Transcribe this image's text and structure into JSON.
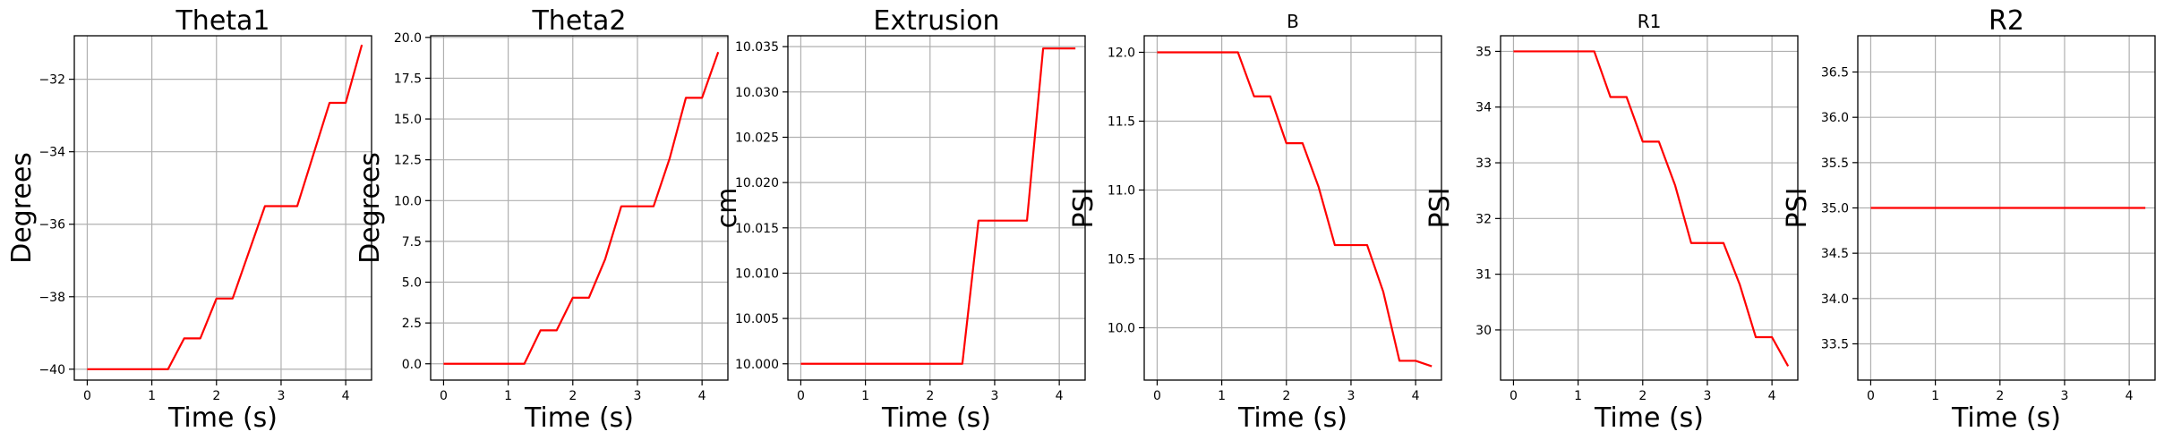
{
  "figure": {
    "line_color": "#ff0000"
  },
  "chart_data": [
    {
      "type": "line",
      "title": "Theta1",
      "xlabel": "Time (s)",
      "ylabel": "Degrees",
      "xlim": [
        -0.2,
        4.4
      ],
      "ylim": [
        -40.3,
        -30.8
      ],
      "xticks": [
        0,
        1,
        2,
        3,
        4
      ],
      "xtick_labels": [
        "0",
        "1",
        "2",
        "3",
        "4"
      ],
      "yticks": [
        -40,
        -38,
        -36,
        -34,
        -32
      ],
      "ytick_labels": [
        "−40",
        "−38",
        "−36",
        "−34",
        "−32"
      ],
      "grid": true,
      "series": [
        {
          "x": [
            0,
            1.25,
            1.5,
            1.75,
            2.0,
            2.25,
            2.75,
            3.25,
            3.75,
            4.0,
            4.25
          ],
          "y": [
            -40,
            -40,
            -39.15,
            -39.15,
            -38.05,
            -38.05,
            -35.5,
            -35.5,
            -32.65,
            -32.65,
            -31.05
          ]
        }
      ]
    },
    {
      "type": "line",
      "title": "Theta2",
      "xlabel": "Time (s)",
      "ylabel": "Degrees",
      "xlim": [
        -0.2,
        4.4
      ],
      "ylim": [
        -1.0,
        20.1
      ],
      "xticks": [
        0,
        1,
        2,
        3,
        4
      ],
      "xtick_labels": [
        "0",
        "1",
        "2",
        "3",
        "4"
      ],
      "yticks": [
        0,
        2.5,
        5,
        7.5,
        10,
        12.5,
        15,
        17.5,
        20
      ],
      "ytick_labels": [
        "0.0",
        "2.5",
        "5.0",
        "7.5",
        "10.0",
        "12.5",
        "15.0",
        "17.5",
        "20.0"
      ],
      "grid": true,
      "series": [
        {
          "x": [
            0,
            1.25,
            1.5,
            1.75,
            2.0,
            2.25,
            2.5,
            2.75,
            3.25,
            3.5,
            3.75,
            4.0,
            4.25
          ],
          "y": [
            0,
            0,
            2.05,
            2.05,
            4.05,
            4.05,
            6.4,
            9.65,
            9.65,
            12.6,
            16.3,
            16.3,
            19.1
          ]
        }
      ]
    },
    {
      "type": "line",
      "title": "Extrusion",
      "xlabel": "Time (s)",
      "ylabel": "cm",
      "xlim": [
        -0.2,
        4.4
      ],
      "ylim": [
        9.9982,
        10.0362
      ],
      "xticks": [
        0,
        1,
        2,
        3,
        4
      ],
      "xtick_labels": [
        "0",
        "1",
        "2",
        "3",
        "4"
      ],
      "yticks": [
        10.0,
        10.005,
        10.01,
        10.015,
        10.02,
        10.025,
        10.03,
        10.035
      ],
      "ytick_labels": [
        "10.000",
        "10.005",
        "10.010",
        "10.015",
        "10.020",
        "10.025",
        "10.030",
        "10.035"
      ],
      "grid": true,
      "series": [
        {
          "x": [
            0,
            2.5,
            2.75,
            3.5,
            3.75,
            4.0,
            4.25
          ],
          "y": [
            10.0,
            10.0,
            10.0158,
            10.0158,
            10.0348,
            10.0348,
            10.0348
          ]
        }
      ]
    },
    {
      "type": "line",
      "title": "B",
      "xlabel": "Time (s)",
      "ylabel": "PSI",
      "xlim": [
        -0.2,
        4.4
      ],
      "ylim": [
        9.62,
        12.12
      ],
      "xticks": [
        0,
        1,
        2,
        3,
        4
      ],
      "xtick_labels": [
        "0",
        "1",
        "2",
        "3",
        "4"
      ],
      "yticks": [
        10.0,
        10.5,
        11.0,
        11.5,
        12.0
      ],
      "ytick_labels": [
        "10.0",
        "10.5",
        "11.0",
        "11.5",
        "12.0"
      ],
      "grid": true,
      "series": [
        {
          "x": [
            0,
            1.25,
            1.5,
            1.75,
            2.0,
            2.25,
            2.5,
            2.75,
            3.25,
            3.5,
            3.75,
            4.0,
            4.25
          ],
          "y": [
            12.0,
            12.0,
            11.68,
            11.68,
            11.34,
            11.34,
            11.02,
            10.6,
            10.6,
            10.26,
            9.76,
            9.76,
            9.72
          ]
        }
      ]
    },
    {
      "type": "line",
      "title": "R1",
      "xlabel": "Time (s)",
      "ylabel": "PSI",
      "xlim": [
        -0.2,
        4.4
      ],
      "ylim": [
        29.1,
        35.28
      ],
      "xticks": [
        0,
        1,
        2,
        3,
        4
      ],
      "xtick_labels": [
        "0",
        "1",
        "2",
        "3",
        "4"
      ],
      "yticks": [
        30,
        31,
        32,
        33,
        34,
        35
      ],
      "ytick_labels": [
        "30",
        "31",
        "32",
        "33",
        "34",
        "35"
      ],
      "grid": true,
      "series": [
        {
          "x": [
            0,
            1.25,
            1.5,
            1.75,
            2.0,
            2.25,
            2.5,
            2.75,
            3.25,
            3.5,
            3.75,
            4.0,
            4.25
          ],
          "y": [
            35.0,
            35.0,
            34.18,
            34.18,
            33.38,
            33.38,
            32.6,
            31.56,
            31.56,
            30.82,
            29.87,
            29.87,
            29.35
          ]
        }
      ]
    },
    {
      "type": "line",
      "title": "R2",
      "xlabel": "Time (s)",
      "ylabel": "PSI",
      "xlim": [
        -0.2,
        4.4
      ],
      "ylim": [
        33.1,
        36.9
      ],
      "xticks": [
        0,
        1,
        2,
        3,
        4
      ],
      "xtick_labels": [
        "0",
        "1",
        "2",
        "3",
        "4"
      ],
      "yticks": [
        33.5,
        34.0,
        34.5,
        35.0,
        35.5,
        36.0,
        36.5
      ],
      "ytick_labels": [
        "33.5",
        "34.0",
        "34.5",
        "35.0",
        "35.5",
        "36.0",
        "36.5"
      ],
      "grid": true,
      "series": [
        {
          "x": [
            0,
            4.25
          ],
          "y": [
            35.0,
            35.0
          ]
        }
      ]
    }
  ]
}
